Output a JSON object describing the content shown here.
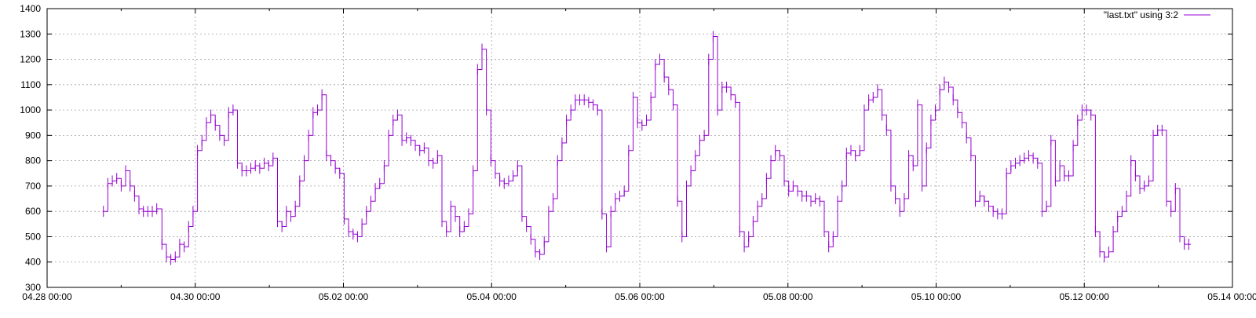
{
  "chart_data": {
    "type": "line",
    "title": "",
    "xlabel": "",
    "ylabel": "",
    "grid": true,
    "legend": "top-right",
    "ylim": [
      300,
      1400
    ],
    "yticks": [
      300,
      400,
      500,
      600,
      700,
      800,
      900,
      1000,
      1100,
      1200,
      1300,
      1400
    ],
    "xlim": [
      "04.28 00:00",
      "05.14 00:00"
    ],
    "xticks": [
      "04.28 00:00",
      "04.30 00:00",
      "05.02 00:00",
      "05.04 00:00",
      "05.06 00:00",
      "05.08 00:00",
      "05.10 00:00",
      "05.12 00:00",
      "05.14 00:00"
    ],
    "line_style": "steps",
    "series": [
      {
        "name": "\"last.txt\" using 3:2",
        "color": "#9400d3",
        "x_unit": "days after 04.28 00:00",
        "points": [
          [
            0.76,
            600
          ],
          [
            0.82,
            710
          ],
          [
            0.88,
            720
          ],
          [
            0.94,
            730
          ],
          [
            1.0,
            700
          ],
          [
            1.06,
            760
          ],
          [
            1.12,
            700
          ],
          [
            1.18,
            660
          ],
          [
            1.24,
            610
          ],
          [
            1.3,
            600
          ],
          [
            1.36,
            600
          ],
          [
            1.42,
            600
          ],
          [
            1.48,
            610
          ],
          [
            1.55,
            470
          ],
          [
            1.61,
            420
          ],
          [
            1.67,
            410
          ],
          [
            1.73,
            420
          ],
          [
            1.79,
            470
          ],
          [
            1.85,
            460
          ],
          [
            1.91,
            540
          ],
          [
            1.97,
            600
          ],
          [
            2.03,
            840
          ],
          [
            2.09,
            880
          ],
          [
            2.15,
            950
          ],
          [
            2.21,
            980
          ],
          [
            2.27,
            940
          ],
          [
            2.33,
            900
          ],
          [
            2.39,
            880
          ],
          [
            2.45,
            990
          ],
          [
            2.51,
            1000
          ],
          [
            2.57,
            790
          ],
          [
            2.63,
            760
          ],
          [
            2.69,
            760
          ],
          [
            2.75,
            770
          ],
          [
            2.81,
            780
          ],
          [
            2.87,
            770
          ],
          [
            2.93,
            790
          ],
          [
            2.99,
            780
          ],
          [
            3.05,
            810
          ],
          [
            3.11,
            560
          ],
          [
            3.17,
            540
          ],
          [
            3.23,
            600
          ],
          [
            3.29,
            580
          ],
          [
            3.35,
            620
          ],
          [
            3.41,
            720
          ],
          [
            3.47,
            800
          ],
          [
            3.53,
            900
          ],
          [
            3.59,
            990
          ],
          [
            3.65,
            1000
          ],
          [
            3.71,
            1060
          ],
          [
            3.77,
            820
          ],
          [
            3.83,
            800
          ],
          [
            3.89,
            770
          ],
          [
            3.95,
            750
          ],
          [
            4.01,
            570
          ],
          [
            4.07,
            520
          ],
          [
            4.13,
            510
          ],
          [
            4.19,
            500
          ],
          [
            4.25,
            550
          ],
          [
            4.31,
            600
          ],
          [
            4.37,
            640
          ],
          [
            4.43,
            690
          ],
          [
            4.49,
            710
          ],
          [
            4.55,
            780
          ],
          [
            4.61,
            900
          ],
          [
            4.67,
            960
          ],
          [
            4.73,
            980
          ],
          [
            4.79,
            880
          ],
          [
            4.85,
            890
          ],
          [
            4.91,
            880
          ],
          [
            4.97,
            860
          ],
          [
            5.03,
            840
          ],
          [
            5.09,
            850
          ],
          [
            5.15,
            800
          ],
          [
            5.21,
            790
          ],
          [
            5.27,
            820
          ],
          [
            5.33,
            560
          ],
          [
            5.39,
            520
          ],
          [
            5.45,
            620
          ],
          [
            5.51,
            580
          ],
          [
            5.57,
            520
          ],
          [
            5.63,
            540
          ],
          [
            5.69,
            590
          ],
          [
            5.75,
            760
          ],
          [
            5.81,
            1160
          ],
          [
            5.87,
            1240
          ],
          [
            5.93,
            1000
          ],
          [
            5.99,
            800
          ],
          [
            6.05,
            750
          ],
          [
            6.11,
            720
          ],
          [
            6.17,
            710
          ],
          [
            6.23,
            720
          ],
          [
            6.29,
            740
          ],
          [
            6.35,
            780
          ],
          [
            6.41,
            580
          ],
          [
            6.47,
            540
          ],
          [
            6.53,
            490
          ],
          [
            6.59,
            440
          ],
          [
            6.65,
            430
          ],
          [
            6.71,
            480
          ],
          [
            6.77,
            600
          ],
          [
            6.83,
            650
          ],
          [
            6.89,
            800
          ],
          [
            6.95,
            870
          ],
          [
            7.01,
            960
          ],
          [
            7.07,
            1000
          ],
          [
            7.13,
            1040
          ],
          [
            7.19,
            1040
          ],
          [
            7.25,
            1040
          ],
          [
            7.31,
            1030
          ],
          [
            7.37,
            1020
          ],
          [
            7.43,
            1000
          ],
          [
            7.49,
            590
          ],
          [
            7.55,
            460
          ],
          [
            7.61,
            600
          ],
          [
            7.67,
            650
          ],
          [
            7.73,
            660
          ],
          [
            7.79,
            680
          ],
          [
            7.85,
            840
          ],
          [
            7.91,
            1050
          ],
          [
            7.97,
            950
          ],
          [
            8.03,
            940
          ],
          [
            8.09,
            960
          ],
          [
            8.15,
            1050
          ],
          [
            8.21,
            1180
          ],
          [
            8.27,
            1200
          ],
          [
            8.33,
            1130
          ],
          [
            8.39,
            1080
          ],
          [
            8.45,
            1020
          ],
          [
            8.51,
            640
          ],
          [
            8.57,
            500
          ],
          [
            8.63,
            700
          ],
          [
            8.69,
            760
          ],
          [
            8.75,
            820
          ],
          [
            8.81,
            880
          ],
          [
            8.87,
            900
          ],
          [
            8.93,
            1200
          ],
          [
            8.99,
            1290
          ],
          [
            9.05,
            1000
          ],
          [
            9.11,
            1090
          ],
          [
            9.17,
            1090
          ],
          [
            9.23,
            1060
          ],
          [
            9.29,
            1030
          ],
          [
            9.35,
            520
          ],
          [
            9.41,
            460
          ],
          [
            9.47,
            500
          ],
          [
            9.53,
            560
          ],
          [
            9.59,
            620
          ],
          [
            9.65,
            650
          ],
          [
            9.71,
            730
          ],
          [
            9.77,
            800
          ],
          [
            9.83,
            840
          ],
          [
            9.89,
            820
          ],
          [
            9.95,
            720
          ],
          [
            10.01,
            680
          ],
          [
            10.07,
            700
          ],
          [
            10.13,
            680
          ],
          [
            10.19,
            660
          ],
          [
            10.25,
            660
          ],
          [
            10.31,
            640
          ],
          [
            10.37,
            650
          ],
          [
            10.43,
            640
          ],
          [
            10.49,
            520
          ],
          [
            10.55,
            460
          ],
          [
            10.61,
            500
          ],
          [
            10.67,
            640
          ],
          [
            10.73,
            700
          ],
          [
            10.79,
            830
          ],
          [
            10.85,
            840
          ],
          [
            10.91,
            820
          ],
          [
            10.97,
            840
          ],
          [
            11.03,
            1000
          ],
          [
            11.09,
            1040
          ],
          [
            11.15,
            1050
          ],
          [
            11.21,
            1080
          ],
          [
            11.27,
            980
          ],
          [
            11.33,
            920
          ],
          [
            11.39,
            700
          ],
          [
            11.45,
            650
          ],
          [
            11.51,
            600
          ],
          [
            11.57,
            650
          ],
          [
            11.63,
            820
          ],
          [
            11.69,
            780
          ],
          [
            11.75,
            1020
          ],
          [
            11.81,
            700
          ],
          [
            11.87,
            850
          ],
          [
            11.93,
            960
          ],
          [
            11.99,
            1000
          ],
          [
            12.05,
            1080
          ],
          [
            12.11,
            1110
          ],
          [
            12.17,
            1090
          ],
          [
            12.23,
            1040
          ],
          [
            12.29,
            990
          ],
          [
            12.35,
            950
          ],
          [
            12.41,
            890
          ],
          [
            12.47,
            820
          ],
          [
            12.53,
            640
          ],
          [
            12.59,
            660
          ],
          [
            12.65,
            640
          ],
          [
            12.71,
            620
          ],
          [
            12.77,
            600
          ],
          [
            12.83,
            590
          ],
          [
            12.89,
            590
          ],
          [
            12.95,
            750
          ],
          [
            13.01,
            780
          ],
          [
            13.07,
            790
          ],
          [
            13.13,
            800
          ],
          [
            13.19,
            810
          ],
          [
            13.25,
            820
          ],
          [
            13.31,
            810
          ],
          [
            13.37,
            790
          ],
          [
            13.43,
            600
          ],
          [
            13.49,
            620
          ],
          [
            13.55,
            880
          ],
          [
            13.61,
            720
          ],
          [
            13.67,
            780
          ],
          [
            13.73,
            740
          ],
          [
            13.79,
            740
          ],
          [
            13.85,
            860
          ],
          [
            13.91,
            960
          ],
          [
            13.97,
            1000
          ],
          [
            14.03,
            1000
          ],
          [
            14.09,
            980
          ],
          [
            14.15,
            520
          ],
          [
            14.21,
            440
          ],
          [
            14.27,
            420
          ],
          [
            14.33,
            440
          ],
          [
            14.39,
            520
          ],
          [
            14.45,
            580
          ],
          [
            14.51,
            600
          ],
          [
            14.57,
            660
          ],
          [
            14.63,
            800
          ],
          [
            14.69,
            740
          ],
          [
            14.75,
            690
          ],
          [
            14.81,
            700
          ],
          [
            14.87,
            720
          ],
          [
            14.93,
            900
          ],
          [
            14.99,
            920
          ],
          [
            15.05,
            920
          ],
          [
            15.11,
            640
          ],
          [
            15.17,
            600
          ],
          [
            15.23,
            690
          ],
          [
            15.29,
            500
          ],
          [
            15.35,
            470
          ],
          [
            15.41,
            470
          ]
        ]
      }
    ]
  }
}
